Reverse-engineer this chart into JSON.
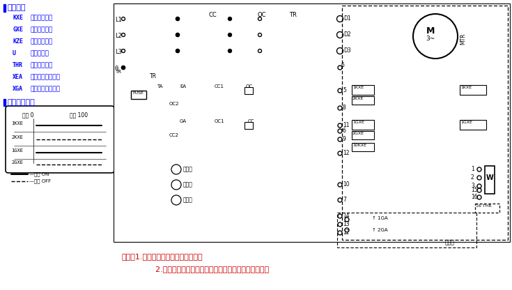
{
  "bg_color": "#ffffff",
  "blue": "#0000FF",
  "red": "#CC0000",
  "black": "#000000",
  "darkgray": "#333333",
  "legend_title": "I 符号说明",
  "legend_items": [
    [
      "KXE",
      "开向限位开关"
    ],
    [
      "GXE",
      "关向限位开关"
    ],
    [
      "KZE",
      "开向转矩开关"
    ],
    [
      "U",
      "位置电位器"
    ],
    [
      "THR",
      "空间加热电阻"
    ],
    [
      "XEA",
      "现场开阀操作开关"
    ],
    [
      "XGA",
      "现场关阀操作开关"
    ]
  ],
  "switch_title": "I 开关动作程序",
  "switch_col1": "全关 0",
  "switch_col2": "全开 100",
  "switch_labels": [
    "1KXE",
    "2KXE",
    "1GXE",
    "2GXE"
  ],
  "note1": "说明：1.虚线框内为执行机构内部接线",
  "note2": "        2.图中各限位及转矩开关为阀门处于中间位置时的状态",
  "fig_w": 7.35,
  "fig_h": 4.16,
  "dpi": 100
}
